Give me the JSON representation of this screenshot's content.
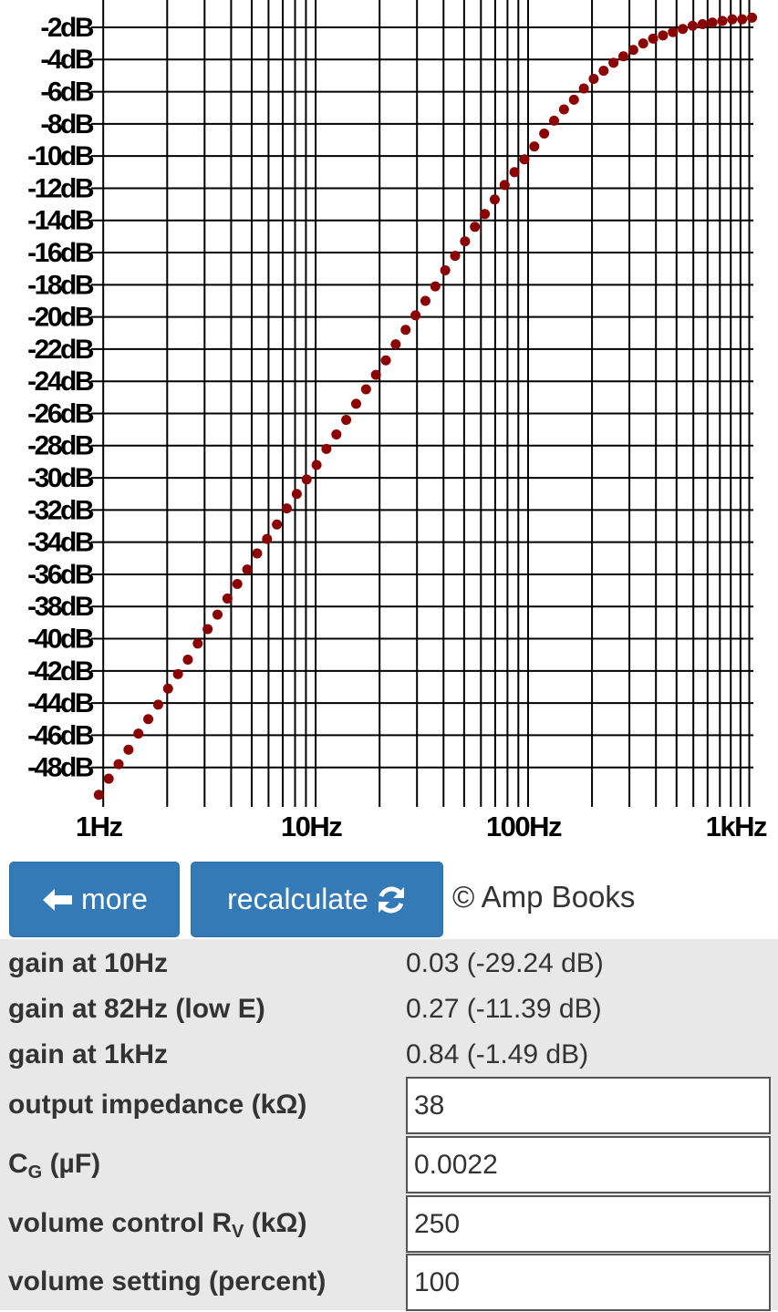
{
  "chart_data": {
    "type": "scatter",
    "xscale": "log",
    "grid": true,
    "color": "#8b0000",
    "xlim": [
      0.95,
      1150
    ],
    "ylim": [
      -50,
      -0.3
    ],
    "xticks": [
      {
        "value": 1,
        "label": "1Hz"
      },
      {
        "value": 10,
        "label": "10Hz"
      },
      {
        "value": 100,
        "label": "100Hz"
      },
      {
        "value": 1000,
        "label": "1kHz"
      }
    ],
    "x_minor_grid": [
      2,
      3,
      4,
      5,
      6,
      7,
      8,
      9,
      20,
      30,
      40,
      50,
      60,
      70,
      80,
      90,
      200,
      300,
      400,
      500,
      600,
      700,
      800,
      900,
      1100
    ],
    "yticks": [
      {
        "value": -2,
        "label": "-2dB"
      },
      {
        "value": -4,
        "label": "-4dB"
      },
      {
        "value": -6,
        "label": "-6dB"
      },
      {
        "value": -8,
        "label": "-8dB"
      },
      {
        "value": -10,
        "label": "-10dB"
      },
      {
        "value": -12,
        "label": "-12dB"
      },
      {
        "value": -14,
        "label": "-14dB"
      },
      {
        "value": -16,
        "label": "-16dB"
      },
      {
        "value": -18,
        "label": "-18dB"
      },
      {
        "value": -20,
        "label": "-20dB"
      },
      {
        "value": -22,
        "label": "-22dB"
      },
      {
        "value": -24,
        "label": "-24dB"
      },
      {
        "value": -26,
        "label": "-26dB"
      },
      {
        "value": -28,
        "label": "-28dB"
      },
      {
        "value": -30,
        "label": "-30dB"
      },
      {
        "value": -32,
        "label": "-32dB"
      },
      {
        "value": -34,
        "label": "-34dB"
      },
      {
        "value": -36,
        "label": "-36dB"
      },
      {
        "value": -38,
        "label": "-38dB"
      },
      {
        "value": -40,
        "label": "-40dB"
      },
      {
        "value": -42,
        "label": "-42dB"
      },
      {
        "value": -44,
        "label": "-44dB"
      },
      {
        "value": -46,
        "label": "-46dB"
      },
      {
        "value": -48,
        "label": "-48dB"
      }
    ],
    "x": [
      0.953,
      1.061,
      1.181,
      1.315,
      1.464,
      1.629,
      1.814,
      2.019,
      2.248,
      2.502,
      2.786,
      3.101,
      3.452,
      3.843,
      4.279,
      4.764,
      5.303,
      5.904,
      6.572,
      7.316,
      8.147,
      9.071,
      10.1,
      11.24,
      12.52,
      13.93,
      15.51,
      17.27,
      19.22,
      21.4,
      23.82,
      26.52,
      29.53,
      32.87,
      36.6,
      40.74,
      45.36,
      50.5,
      56.21,
      62.58,
      69.66,
      77.56,
      86.35,
      96.12,
      107,
      119.1,
      132.6,
      147.6,
      164.4,
      183,
      203.7,
      226.8,
      252.5,
      281.1,
      312.9,
      348.3,
      387.8,
      431.7,
      480.6,
      535,
      595.7,
      663.1,
      738.3,
      821.9,
      914.9,
      1019,
      1134
    ],
    "values": [
      -49.7,
      -48.7,
      -47.8,
      -46.9,
      -45.9,
      -45.0,
      -44.1,
      -43.1,
      -42.2,
      -41.3,
      -40.3,
      -39.4,
      -38.5,
      -37.5,
      -36.6,
      -35.7,
      -34.7,
      -33.8,
      -32.9,
      -31.9,
      -31.0,
      -30.1,
      -29.2,
      -28.2,
      -27.3,
      -26.4,
      -25.4,
      -24.5,
      -23.6,
      -22.7,
      -21.7,
      -20.8,
      -19.9,
      -19.0,
      -18.1,
      -17.1,
      -16.2,
      -15.3,
      -14.4,
      -13.6,
      -12.7,
      -11.8,
      -11.0,
      -10.2,
      -9.4,
      -8.6,
      -7.8,
      -7.1,
      -6.5,
      -5.8,
      -5.2,
      -4.7,
      -4.2,
      -3.8,
      -3.4,
      -3.0,
      -2.7,
      -2.5,
      -2.3,
      -2.1,
      -1.9,
      -1.8,
      -1.7,
      -1.6,
      -1.5,
      -1.5,
      -1.4
    ]
  },
  "buttons": [
    "more",
    "recalculate"
  ],
  "copyright": "© Amp Books",
  "results": [
    {
      "label": "gain at 10Hz",
      "value": "0.03 (-29.24 dB)"
    },
    {
      "label": "gain at 82Hz (low E)",
      "value": "0.27 (-11.39 dB)"
    },
    {
      "label": "gain at 1kHz",
      "value": "0.84 (-1.49 dB)"
    }
  ],
  "inputs": [
    {
      "label": {
        "text": "output impedance (kΩ)"
      },
      "value": "38"
    },
    {
      "label": {
        "text": "C",
        "sub": "G",
        "rest": " (µF)"
      },
      "value": "0.0022"
    },
    {
      "label": {
        "text": "volume control R",
        "sub": "V",
        "rest": " (kΩ)"
      },
      "value": "250"
    },
    {
      "label": {
        "text": "volume setting (percent)"
      },
      "value": "100"
    }
  ]
}
